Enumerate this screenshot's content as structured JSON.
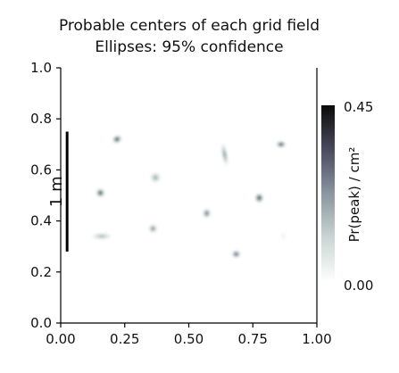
{
  "chart_data": {
    "type": "heatmap",
    "title": "Probable centers of each grid field",
    "subtitle": "Ellipses: 95% confidence",
    "xlabel": "",
    "ylabel": "",
    "xlim": [
      0.0,
      1.0
    ],
    "ylim": [
      0.0,
      1.0
    ],
    "x_ticks": [
      "0.00",
      "0.25",
      "0.50",
      "0.75",
      "1.00"
    ],
    "y_ticks": [
      "0.0",
      "0.2",
      "0.4",
      "0.6",
      "0.8",
      "1.0"
    ],
    "grid": false,
    "scale_bar": {
      "label": "1 m",
      "x": 0.025,
      "y_range": [
        0.28,
        0.75
      ]
    },
    "colorbar": {
      "label": "Pr(peak) / cm²",
      "min_label": "0.00",
      "max_label": "0.45",
      "min": 0.0,
      "max": 0.45,
      "colors": [
        "#ffffff",
        "#c9d6d3",
        "#8a96a0",
        "#4a4a5e",
        "#0a0a0a"
      ]
    },
    "fields": [
      {
        "x": 0.22,
        "y": 0.72,
        "peak": 0.45,
        "sx": 0.018,
        "sy": 0.014,
        "angle": 20
      },
      {
        "x": 0.86,
        "y": 0.7,
        "peak": 0.45,
        "sx": 0.018,
        "sy": 0.012,
        "angle": 0
      },
      {
        "x": 0.64,
        "y": 0.66,
        "peak": 0.28,
        "sx": 0.01,
        "sy": 0.045,
        "angle": 10
      },
      {
        "x": 0.37,
        "y": 0.57,
        "peak": 0.22,
        "sx": 0.02,
        "sy": 0.02,
        "angle": 0
      },
      {
        "x": 0.155,
        "y": 0.51,
        "peak": 0.45,
        "sx": 0.016,
        "sy": 0.016,
        "angle": 0
      },
      {
        "x": 0.775,
        "y": 0.49,
        "peak": 0.45,
        "sx": 0.016,
        "sy": 0.018,
        "angle": 0
      },
      {
        "x": 0.57,
        "y": 0.43,
        "peak": 0.35,
        "sx": 0.015,
        "sy": 0.018,
        "angle": 0
      },
      {
        "x": 0.36,
        "y": 0.37,
        "peak": 0.3,
        "sx": 0.016,
        "sy": 0.016,
        "angle": 0
      },
      {
        "x": 0.16,
        "y": 0.34,
        "peak": 0.2,
        "sx": 0.04,
        "sy": 0.012,
        "angle": 0
      },
      {
        "x": 0.87,
        "y": 0.34,
        "peak": 0.04,
        "sx": 0.012,
        "sy": 0.022,
        "angle": 0
      },
      {
        "x": 0.685,
        "y": 0.27,
        "peak": 0.4,
        "sx": 0.016,
        "sy": 0.014,
        "angle": 0
      }
    ]
  }
}
